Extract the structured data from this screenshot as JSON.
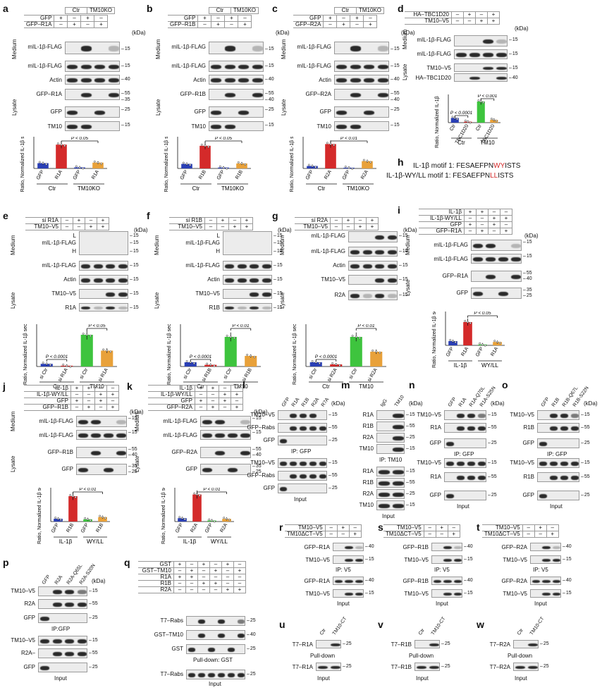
{
  "panels": {
    "a": {
      "label": "a",
      "cond_rows": [
        {
          "name": "GFP",
          "signs": [
            "+",
            "–",
            "+",
            "–"
          ]
        },
        {
          "name": "GFP–R1A",
          "signs": [
            "–",
            "+",
            "–",
            "+"
          ]
        }
      ],
      "groups": [
        "Ctr",
        "TM10KO"
      ],
      "blots": [
        "mIL-1β-FLAG",
        "mIL-1β-FLAG",
        "Actin",
        "GFP–R1A",
        "GFP",
        "TM10"
      ],
      "sections": [
        "Medium",
        "Lysate"
      ],
      "kda": "(kDa)",
      "mw": [
        "15",
        "15",
        "40",
        "55",
        "35",
        "25",
        "15"
      ],
      "ylabel": "Ratio, Normalized IL-1β secretion",
      "xcats": [
        "GFP",
        "R1A",
        "GFP",
        "R1A"
      ],
      "pvalue": "P < 0.05",
      "xgroups": [
        "Ctr",
        "TM10KO"
      ]
    },
    "b": {
      "label": "b",
      "cond_rows": [
        {
          "name": "GFP",
          "signs": [
            "+",
            "–",
            "+",
            "–"
          ]
        },
        {
          "name": "GFP–R1B",
          "signs": [
            "–",
            "+",
            "–",
            "+"
          ]
        }
      ],
      "groups": [
        "Ctr",
        "TM10KO"
      ],
      "blots": [
        "mIL-1β-FLAG",
        "mIL-1β-FLAG",
        "Actin",
        "GFP–R1B",
        "GFP",
        "TM10"
      ],
      "sections": [
        "Medium",
        "Lysate"
      ],
      "kda": "(kDa)",
      "mw": [
        "15",
        "15",
        "40",
        "55",
        "40",
        "25",
        "15"
      ],
      "ylabel": "Ratio, Normalized IL-1β secretion",
      "xcats": [
        "GFP",
        "R1B",
        "GFP",
        "R1B"
      ],
      "pvalue": "P < 0.05",
      "xgroups": [
        "Ctr",
        "TM10KO"
      ]
    },
    "c": {
      "label": "c",
      "cond_rows": [
        {
          "name": "GFP",
          "signs": [
            "+",
            "–",
            "+",
            "–"
          ]
        },
        {
          "name": "GFP–R2A",
          "signs": [
            "–",
            "+",
            "–",
            "+"
          ]
        }
      ],
      "groups": [
        "Ctr",
        "TM10KO"
      ],
      "blots": [
        "mIL-1β-FLAG",
        "mIL-1β-FLAG",
        "Actin",
        "GFP–R2A",
        "GFP",
        "TM10"
      ],
      "sections": [
        "Medium",
        "Lysate"
      ],
      "kda": "(kDa)",
      "mw": [
        "15",
        "15",
        "40",
        "55",
        "40",
        "25",
        "15"
      ],
      "ylabel": "Ratio, Normalized IL-1β secretion",
      "xcats": [
        "GFP",
        "R2A",
        "GFP",
        "R2A"
      ],
      "pvalue": "P < 0.01",
      "xgroups": [
        "Ctr",
        "TM10KO"
      ]
    },
    "d": {
      "label": "d",
      "cond_rows": [
        {
          "name": "HA–TBC1D20",
          "signs": [
            "–",
            "+",
            "–",
            "+"
          ]
        },
        {
          "name": "TM10–V5",
          "signs": [
            "–",
            "–",
            "+",
            "+"
          ]
        }
      ],
      "blots": [
        "mIL-1β-FLAG",
        "mIL-1β-FLAG",
        "TM10–V5",
        "HA–TBC1D20"
      ],
      "sections": [
        "Medium",
        "Lysate"
      ],
      "kda": "(kDa)",
      "mw": [
        "15",
        "15",
        "15",
        "40"
      ],
      "ylabel": "Ratio, Normalized IL-1β secretion",
      "xcats": [
        "Ctr",
        "TBC1D20",
        "Ctr",
        "TBC1D20"
      ],
      "p1": "P < 0.0001",
      "p2": "P < 0.001",
      "xgroups": [
        "Ctr",
        "TM10"
      ]
    },
    "e": {
      "label": "e",
      "cond_rows": [
        {
          "name": "si R1A",
          "signs": [
            "–",
            "+",
            "–",
            "+"
          ]
        },
        {
          "name": "TM10–V5",
          "signs": [
            "–",
            "–",
            "+",
            "+"
          ]
        }
      ],
      "blots": [
        "L",
        "mIL-1β-FLAG",
        "H",
        "mIL-1β-FLAG",
        "Actin",
        "TM10–V5",
        "R1A"
      ],
      "sections": [
        "Medium",
        "Lysate"
      ],
      "kda": "(kDa)",
      "ylabel": "Ratio, Normalized IL-1β secretion",
      "xcats": [
        "si Ctr",
        "si R1A",
        "si Ctr",
        "si R1A"
      ],
      "p1": "P < 0.0001",
      "p2": "P < 0.05",
      "xgroups": [
        "Ctr",
        "TM10"
      ]
    },
    "f": {
      "label": "f",
      "cond_rows": [
        {
          "name": "si R1B",
          "signs": [
            "–",
            "+",
            "–",
            "+"
          ]
        },
        {
          "name": "TM10–V5",
          "signs": [
            "–",
            "–",
            "+",
            "+"
          ]
        }
      ],
      "blots": [
        "L",
        "mIL-1β-FLAG",
        "H",
        "mIL-1β-FLAG",
        "Actin",
        "TM10–V5",
        "R1B"
      ],
      "sections": [
        "Medium",
        "Lysate"
      ],
      "kda": "(kDa)",
      "ylabel": "Ratio, Normalized IL-1β secretion",
      "xcats": [
        "si Ctr",
        "si R1B",
        "si Ctr",
        "si R1B"
      ],
      "p1": "P < 0.0001",
      "p2": "P < 0.01",
      "xgroups": [
        "Ctr",
        "TM10"
      ]
    },
    "g": {
      "label": "g",
      "cond_rows": [
        {
          "name": "si R2A",
          "signs": [
            "–",
            "+",
            "–",
            "+"
          ]
        },
        {
          "name": "TM10–V5",
          "signs": [
            "–",
            "–",
            "+",
            "+"
          ]
        }
      ],
      "blots": [
        "mIL-1β-FLAG",
        "mIL-1β-FLAG",
        "Actin",
        "TM10–V5",
        "R2A"
      ],
      "sections": [
        "Medium",
        "Lysate"
      ],
      "kda": "(kDa)",
      "ylabel": "Ratio, Normalized IL-1β secretion",
      "xcats": [
        "si Ctr",
        "si R2A",
        "si Ctr",
        "si R2A"
      ],
      "p1": "P < 0.0001",
      "p2": "P < 0.01",
      "xgroups": [
        "Ctr",
        "TM10"
      ]
    },
    "h": {
      "label": "h",
      "line1_prefix": "IL-1β motif 1: FESAEFPN",
      "line1_red": "WY",
      "line1_suffix": "ISTS",
      "line2_prefix": "IL-1β-WY/LL motif 1: FESAEFPN",
      "line2_red": "LL",
      "line2_suffix": "ISTS"
    },
    "i": {
      "label": "i",
      "cond_rows": [
        {
          "name": "IL-1β",
          "signs": [
            "+",
            "+",
            "–",
            "–"
          ]
        },
        {
          "name": "IL-1β-WY/LL",
          "signs": [
            "–",
            "–",
            "+",
            "+"
          ]
        },
        {
          "name": "GFP",
          "signs": [
            "+",
            "–",
            "+",
            "–"
          ]
        },
        {
          "name": "GFP–R1A",
          "signs": [
            "–",
            "+",
            "–",
            "+"
          ]
        }
      ],
      "blots": [
        "mIL-1β-FLAG",
        "mIL-1β-FLAG",
        "GFP–R1A",
        "GFP"
      ],
      "sections": [
        "Medium",
        "Lysate"
      ],
      "kda": "(kDa)",
      "ylabel": "Ratio, Normalized IL-1β secretion",
      "xcats": [
        "GFP",
        "R1A",
        "GFP",
        "R1A"
      ],
      "pvalue": "P < 0.05",
      "xgroups": [
        "IL-1β",
        "WY/LL"
      ]
    },
    "j": {
      "label": "j",
      "cond_rows": [
        {
          "name": "IL-1β",
          "signs": [
            "+",
            "+",
            "–",
            "–"
          ]
        },
        {
          "name": "IL-1β-WY/LL",
          "signs": [
            "–",
            "–",
            "+",
            "+"
          ]
        },
        {
          "name": "GFP",
          "signs": [
            "+",
            "–",
            "+",
            "–"
          ]
        },
        {
          "name": "GFP–R1B",
          "signs": [
            "–",
            "+",
            "–",
            "+"
          ]
        }
      ],
      "blots": [
        "mIL-1β-FLAG",
        "mIL-1β-FLAG",
        "GFP–R1B",
        "GFP"
      ],
      "sections": [
        "Medium",
        "Lysate"
      ],
      "kda": "(kDa)",
      "ylabel": "Ratio, Normalized IL-1β secretion",
      "xcats": [
        "GFP",
        "R1B",
        "GFP",
        "R1B"
      ],
      "pvalue": "P < 0.01",
      "xgroups": [
        "IL-1β",
        "WY/LL"
      ]
    },
    "k": {
      "label": "k",
      "cond_rows": [
        {
          "name": "IL-1β",
          "signs": [
            "+",
            "+",
            "–",
            "–"
          ]
        },
        {
          "name": "IL-1β-WY/LL",
          "signs": [
            "–",
            "–",
            "+",
            "+"
          ]
        },
        {
          "name": "GFP",
          "signs": [
            "+",
            "–",
            "+",
            "–"
          ]
        },
        {
          "name": "GFP–R2A",
          "signs": [
            "–",
            "+",
            "–",
            "+"
          ]
        }
      ],
      "blots": [
        "mIL-1β-FLAG",
        "mIL-1β-FLAG",
        "GFP–R2A",
        "GFP"
      ],
      "sections": [
        "Medium",
        "Lysate"
      ],
      "kda": "(kDa)",
      "ylabel": "Ratio, Normalized IL-1β secretion",
      "xcats": [
        "GFP",
        "R2A",
        "GFP",
        "R2A"
      ],
      "pvalue": "P < 0.01",
      "xgroups": [
        "IL-1β",
        "WY/LL"
      ]
    },
    "l": {
      "label": "l",
      "lanes": [
        "GFP",
        "R1A",
        "R1B",
        "R2A",
        "R7A"
      ],
      "blots": [
        "TM10–V5",
        "GFP–Rabs",
        "GFP",
        "TM10–V5",
        "GFP–Rabs",
        "GFP"
      ],
      "ip": "IP: GFP",
      "input": "Input"
    },
    "m": {
      "label": "m",
      "lanes": [
        "IgG",
        "TM10"
      ],
      "blots": [
        "R1A",
        "R1B",
        "R2A",
        "TM10",
        "R1A",
        "R1B",
        "R2A",
        "TM10"
      ],
      "ip": "IP: TM10",
      "input": "Input"
    },
    "n": {
      "label": "n",
      "lanes": [
        "GFP",
        "R1A",
        "R1A-Q70L",
        "R1A-S25N"
      ],
      "blots": [
        "TM10–V5",
        "R1A",
        "GFP",
        "TM10–V5",
        "R1A",
        "GFP"
      ],
      "ip": "IP: GFP",
      "input": "Input"
    },
    "o": {
      "label": "o",
      "lanes": [
        "GFP",
        "R1B",
        "R1B-Q67L",
        "R1B-S22N"
      ],
      "blots": [
        "TM10–V5",
        "R1B",
        "GFP",
        "TM10–V5",
        "R1B",
        "GFP"
      ],
      "ip": "IP: GFP",
      "input": "Input"
    },
    "p": {
      "label": "p",
      "lanes": [
        "GFP",
        "R2A",
        "R2A-Q65L",
        "R2A-S20N"
      ],
      "blots": [
        "TM10–V5",
        "R2A",
        "GFP",
        "TM10–V5",
        "R2A–",
        "GFP"
      ],
      "ip": "IP:GFP",
      "input": "Input"
    },
    "q": {
      "label": "q",
      "cond_rows": [
        {
          "name": "GST",
          "signs": [
            "+",
            "–",
            "+",
            "–",
            "+",
            "–"
          ]
        },
        {
          "name": "GST–TM10",
          "signs": [
            "–",
            "+",
            "–",
            "+",
            "–",
            "+"
          ]
        },
        {
          "name": "R1A",
          "signs": [
            "+",
            "+",
            "–",
            "–",
            "–",
            "–"
          ]
        },
        {
          "name": "R1B",
          "signs": [
            "–",
            "–",
            "+",
            "+",
            "–",
            "–"
          ]
        },
        {
          "name": "R2A",
          "signs": [
            "–",
            "–",
            "–",
            "–",
            "+",
            "+"
          ]
        }
      ],
      "blots": [
        "T7–Rabs",
        "GST–TM10",
        "GST",
        "T7–Rabs"
      ],
      "pd": "Pull-down: GST",
      "input": "Input"
    },
    "r": {
      "label": "r",
      "cond_rows": [
        {
          "name": "TM10–V5",
          "signs": [
            "–",
            "+",
            "–"
          ]
        },
        {
          "name": "TM10ΔCT–V5",
          "signs": [
            "–",
            "–",
            "+"
          ]
        }
      ],
      "blots": [
        "GFP–R1A",
        "TM10–V5",
        "GFP–R1A",
        "TM10–V5"
      ],
      "ip": "IP: V5",
      "input": "Input"
    },
    "s": {
      "label": "s",
      "cond_rows": [
        {
          "name": "TM10–V5",
          "signs": [
            "–",
            "+",
            "–"
          ]
        },
        {
          "name": "TM10ΔCT–V5",
          "signs": [
            "–",
            "–",
            "+"
          ]
        }
      ],
      "blots": [
        "GFP–R1B",
        "TM10–V5",
        "GFP–R1B",
        "TM10–V5"
      ],
      "ip": "IP: V5",
      "input": "Input"
    },
    "t": {
      "label": "t",
      "cond_rows": [
        {
          "name": "TM10–V5",
          "signs": [
            "–",
            "+",
            "–"
          ]
        },
        {
          "name": "TM10ΔCT–V5",
          "signs": [
            "–",
            "–",
            "+"
          ]
        }
      ],
      "blots": [
        "GFP–R2A",
        "TM10–V5",
        "GFP–R2A",
        "TM10–V5"
      ],
      "ip": "IP: V5",
      "input": "Input"
    },
    "u": {
      "label": "u",
      "lanes": [
        "Ctr",
        "TM10-CT"
      ],
      "blots": [
        "T7–R1A",
        "T7–R1A"
      ],
      "pd": "Pull-down",
      "input": "Input"
    },
    "v": {
      "label": "v",
      "lanes": [
        "Ctr",
        "TM10-CT"
      ],
      "blots": [
        "T7–R1B",
        "T7–R1B"
      ],
      "pd": "Pull-down",
      "input": "Input"
    },
    "w": {
      "label": "w",
      "lanes": [
        "Ctr",
        "TM10-CT"
      ],
      "blots": [
        "T7–R2A",
        "T7–R2A"
      ],
      "pd": "Pull-down",
      "input": "Input"
    }
  },
  "chart_data": [
    {
      "panel": "a",
      "type": "bar",
      "categories": [
        "GFP",
        "R1A",
        "GFP",
        "R1A"
      ],
      "values": [
        1,
        4.5,
        0.2,
        1.1
      ],
      "colors": [
        "#2a3fb5",
        "#d42a2a",
        "#2a3fb5",
        "#e8a13a"
      ],
      "ylabel": "Ratio, Normalized IL-1β secretion",
      "ylim": [
        0,
        6
      ]
    },
    {
      "panel": "b",
      "type": "bar",
      "categories": [
        "GFP",
        "R1B",
        "GFP",
        "R1B"
      ],
      "values": [
        1,
        5,
        0.2,
        1.1
      ],
      "colors": [
        "#2a3fb5",
        "#d42a2a",
        "#2a3fb5",
        "#e8a13a"
      ],
      "ylabel": "Ratio, Normalized IL-1β secretion",
      "ylim": [
        0,
        7
      ]
    },
    {
      "panel": "c",
      "type": "bar",
      "categories": [
        "GFP",
        "R2A",
        "GFP",
        "R2A"
      ],
      "values": [
        1,
        10,
        0.3,
        3
      ],
      "colors": [
        "#2a3fb5",
        "#d42a2a",
        "#2a3fb5",
        "#e8a13a"
      ],
      "ylabel": "Ratio, Normalized IL-1β secretion",
      "ylim": [
        0,
        13
      ]
    },
    {
      "panel": "d",
      "type": "bar",
      "categories": [
        "Ctr",
        "TBC1D20",
        "Ctr",
        "TBC1D20"
      ],
      "values": [
        1,
        0.2,
        4.5,
        0.6
      ],
      "colors": [
        "#2a3fb5",
        "#d42a2a",
        "#3ec43e",
        "#e8a13a"
      ],
      "ylabel": "Ratio, Normalized IL-1β secretion",
      "ylim": [
        0,
        6
      ]
    },
    {
      "panel": "e",
      "type": "bar",
      "categories": [
        "si Ctr",
        "si R1A",
        "si Ctr",
        "si R1A"
      ],
      "values": [
        1,
        0.3,
        12,
        6
      ],
      "colors": [
        "#2a3fb5",
        "#d42a2a",
        "#3ec43e",
        "#e8a13a"
      ],
      "ylabel": "Ratio, Normalized IL-1β secretion",
      "ylim": [
        0,
        16
      ]
    },
    {
      "panel": "f",
      "type": "bar",
      "categories": [
        "si Ctr",
        "si R1B",
        "si Ctr",
        "si R1B"
      ],
      "values": [
        1,
        0.4,
        7,
        2.5
      ],
      "colors": [
        "#2a3fb5",
        "#d42a2a",
        "#3ec43e",
        "#e8a13a"
      ],
      "ylabel": "Ratio, Normalized IL-1β secretion",
      "ylim": [
        0,
        10
      ]
    },
    {
      "panel": "g",
      "type": "bar",
      "categories": [
        "si Ctr",
        "si R2A",
        "si Ctr",
        "si R2A"
      ],
      "values": [
        1,
        0.5,
        7,
        3.5
      ],
      "colors": [
        "#2a3fb5",
        "#d42a2a",
        "#3ec43e",
        "#e8a13a"
      ],
      "ylabel": "Ratio, Normalized IL-1β secretion",
      "ylim": [
        0,
        10
      ]
    },
    {
      "panel": "i",
      "type": "bar",
      "categories": [
        "GFP",
        "R1A",
        "GFP",
        "R1A"
      ],
      "values": [
        1,
        5.5,
        0.2,
        0.8
      ],
      "colors": [
        "#2a3fb5",
        "#d42a2a",
        "#3ec43e",
        "#e8a13a"
      ],
      "ylabel": "Ratio, Normalized IL-1β secretion",
      "ylim": [
        0,
        8
      ]
    },
    {
      "panel": "j",
      "type": "bar",
      "categories": [
        "GFP",
        "R1B",
        "GFP",
        "R1B"
      ],
      "values": [
        1,
        9,
        0.8,
        1.6
      ],
      "colors": [
        "#2a3fb5",
        "#d42a2a",
        "#3ec43e",
        "#e8a13a"
      ],
      "ylabel": "Ratio, Normalized IL-1β secretion",
      "ylim": [
        0,
        12
      ]
    },
    {
      "panel": "k",
      "type": "bar",
      "categories": [
        "GFP",
        "R2A",
        "GFP",
        "R2A"
      ],
      "values": [
        1,
        8,
        0.3,
        0.8
      ],
      "colors": [
        "#2a3fb5",
        "#d42a2a",
        "#3ec43e",
        "#e8a13a"
      ],
      "ylabel": "Ratio, Normalized IL-1β secretion",
      "ylim": [
        0,
        10
      ]
    }
  ]
}
